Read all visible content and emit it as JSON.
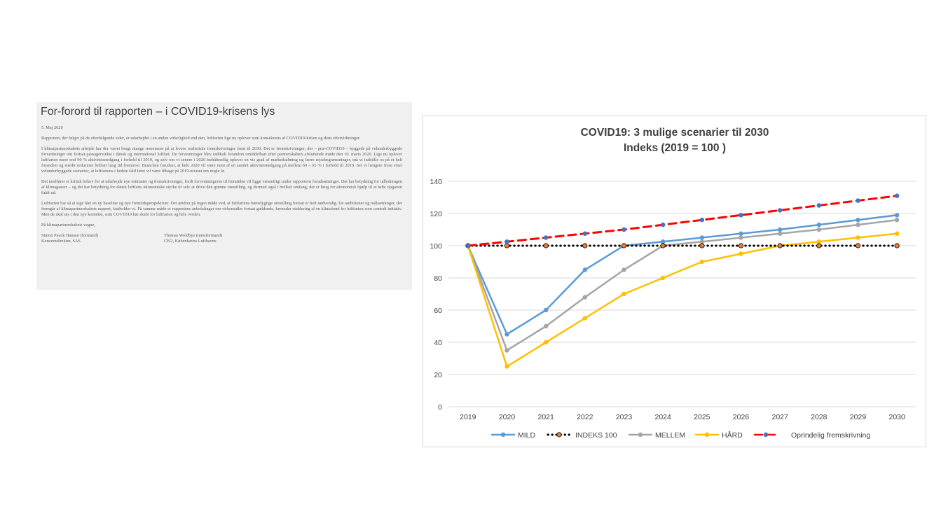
{
  "document": {
    "title": "For-forord til rapporten – i COVID19-krisens lys",
    "date": "5. Maj 2020",
    "paragraphs": [
      "Rapporten, der følger på de efterfølgende sider, er udarbejdet i en anden virkelighed end den, luftfarten lige nu oplever som konsekvens af COVID19-krisen og dens eftervirkninger.",
      "I klimapartnerskabets arbejde har der været brugt mange ressourcer på at levere realistiske fremskrivninger frem til 2030. Det er fremskrivninger, der – præ-COVID19 – byggede på velunderbyggede forventninger om fortsat passagervækst i dansk og international luftfart. De forventninger blev radikalt forandret umiddelbart efter partnerskabets afsluttende møde den 10. marts 2020. Lige nu oplever luftfarten mere end 90 % aktivitetsnedgang i forhold til 2019, og selv om vi senere i 2020 forhåbentlig oplever en vis grad af markedsåbning og færre rejsebegrænsninger, må vi indstille os på et helt forandret og stærkt reduceret luftfart lang tid fremover. Branchen forudser, at hele 2020 vil være ramt af en samlet aktivitetsnedgang på mellem 60 – 65 % i forhold til 2019. Ser vi længere frem viser velunderbyggede scenarier, at luftfartens i bedste fald først vil være tilbage på 2019-niveau om nogle år.",
      "Det medfører et kritisk behov for at udarbejde nye estimater og fremskrivninger, fordi forventningerne til fremtiden vil ligge væsentligt under rapportens forudsætninger. Det har betydning for udledningen af klimagasser – og det har betydning for dansk luftfarts økonomiske styrke til selv at drive den grønne omstilling, og dermed også i hvilket omfang, der er brug for økonomisk hjælp til at løfte opgaven fuldt ud.",
      "Luftfarten har så at sige fået en ny baseline og nye fremtidsperspektiver. Det ændrer på ingen måde ved, at luftfartens bæredygtige omstilling fortsat er helt nødvendig. De ambitioner og målsætninger, der fremgår af klimapartnerskabets rapport, fastholder vi. På samme måde er rapportens anbefalinger om virkemidler fortsat gældende, herunder etablering af en klimafond for luftfarten som centralt initiativ. Men de skal ses i den nye kontekst, som COVID19 har skabt for luftfarten og hele verden.",
      "På klimapartnerskabets vegne,"
    ],
    "signatories": [
      {
        "name": "Simon Pauck Hansen (formand)",
        "role": "Koncerndirektør, SAS"
      },
      {
        "name": "Thomas Woldbye (næstformand)",
        "role": "CEO, Københavns Lufthavne"
      }
    ]
  },
  "chart_data": {
    "type": "line",
    "title": "COVID19: 3 mulige scenarier til 2030",
    "subtitle": "Indeks (2019 = 100 )",
    "x": [
      "2019",
      "2020",
      "2021",
      "2022",
      "2023",
      "2024",
      "2025",
      "2026",
      "2027",
      "2028",
      "2029",
      "2030"
    ],
    "ylim": [
      0,
      140
    ],
    "yticks": [
      0,
      20,
      40,
      60,
      80,
      100,
      120,
      140
    ],
    "grid": true,
    "legend_position": "bottom",
    "series": [
      {
        "name": "MILD",
        "color": "#5b9bd5",
        "style": "solid",
        "marker": "#5b9bd5",
        "values": [
          100,
          45,
          60,
          85,
          100,
          102.5,
          105,
          107.5,
          110,
          113,
          116,
          119
        ]
      },
      {
        "name": "INDEKS 100",
        "color": "#000000",
        "style": "dotted",
        "marker": "#ed7d31",
        "values": [
          100,
          100,
          100,
          100,
          100,
          100,
          100,
          100,
          100,
          100,
          100,
          100
        ]
      },
      {
        "name": "MELLEM",
        "color": "#a5a5a5",
        "style": "solid",
        "marker": "#a5a5a5",
        "values": [
          100,
          35,
          50,
          68,
          85,
          100,
          102.5,
          105,
          107.5,
          110,
          113,
          116
        ]
      },
      {
        "name": "HÅRD",
        "color": "#ffc000",
        "style": "solid",
        "marker": "#ffc000",
        "values": [
          100,
          25,
          40,
          55,
          70,
          80,
          90,
          95,
          100,
          102.5,
          105,
          107.5
        ]
      },
      {
        "name": "Oprindelig fremskrivning",
        "color": "#ff0000",
        "style": "dashed",
        "marker": "#4472c4",
        "values": [
          100,
          102.5,
          105,
          107.5,
          110,
          113,
          116,
          119,
          122,
          125,
          128,
          131
        ]
      }
    ]
  }
}
